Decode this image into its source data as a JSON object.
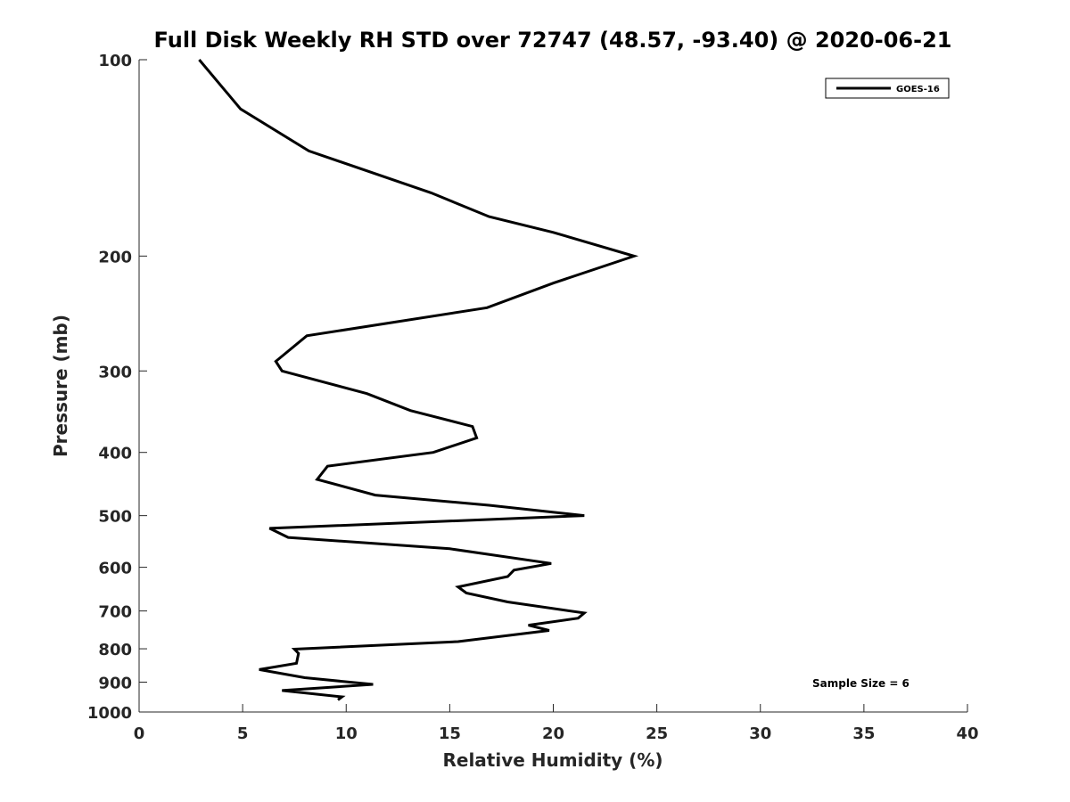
{
  "chart_data": {
    "type": "line",
    "title": "Full Disk Weekly RH STD over 72747 (48.57, -93.40) @ 2020-06-21",
    "xlabel": "Relative Humidity (%)",
    "ylabel": "Pressure (mb)",
    "xlim": [
      0,
      40
    ],
    "ylim": [
      1000,
      100
    ],
    "y_scale": "log",
    "x_ticks": [
      0,
      5,
      10,
      15,
      20,
      25,
      30,
      35,
      40
    ],
    "x_tick_labels": [
      "0",
      "5",
      "10",
      "15",
      "20",
      "25",
      "30",
      "35",
      "40"
    ],
    "y_ticks": [
      100,
      200,
      300,
      400,
      500,
      600,
      700,
      800,
      900,
      1000
    ],
    "y_tick_labels": [
      "100",
      "200",
      "300",
      "400",
      "500",
      "600",
      "700",
      "800",
      "900",
      "1000"
    ],
    "grid": false,
    "legend_position": "top-right",
    "series": [
      {
        "name": "GOES-16",
        "color": "#000000",
        "x": [
          2.9,
          4.9,
          8.2,
          14.1,
          16.9,
          20.0,
          23.9,
          20.0,
          16.8,
          8.1,
          6.6,
          6.9,
          11.0,
          13.1,
          16.1,
          16.3,
          14.2,
          9.1,
          8.6,
          11.4,
          16.9,
          21.5,
          6.3,
          7.2,
          15.0,
          19.9,
          18.1,
          17.8,
          15.4,
          15.8,
          17.8,
          21.5,
          21.2,
          18.8,
          19.8,
          15.4,
          7.5,
          7.7,
          7.6,
          5.8,
          8.0,
          11.3,
          6.9,
          9.8,
          9.6
        ],
        "y": [
          100,
          119,
          138,
          160,
          174,
          184,
          200,
          220,
          240,
          265,
          290,
          300,
          325,
          345,
          365,
          380,
          400,
          420,
          440,
          465,
          482,
          500,
          523,
          540,
          562,
          592,
          606,
          620,
          643,
          657,
          678,
          705,
          718,
          736,
          750,
          780,
          801,
          813,
          842,
          861,
          886,
          907,
          927,
          948,
          958
        ]
      }
    ],
    "annotations": [
      "Sample Size = 6"
    ]
  }
}
